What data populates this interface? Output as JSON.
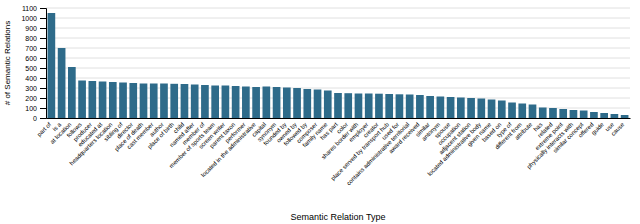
{
  "chart_data": {
    "type": "bar",
    "categories": [
      "part of",
      "is a",
      "at location",
      "follows",
      "producer",
      "educated at",
      "headquarters location",
      "sibling of",
      "director",
      "place of death",
      "cast member",
      "author",
      "place of birth",
      "child",
      "named after",
      "member of",
      "member of sports team",
      "screen writer",
      "parent taxon",
      "performer",
      "located in the administrative",
      "capital",
      "synonym",
      "founded by",
      "owned by",
      "followed by",
      "composer",
      "family name",
      "has part",
      "color",
      "shares border with",
      "employer",
      "creator",
      "place served by transport hub",
      "used for",
      "contains administrative territorial",
      "award received",
      "similar",
      "antonym",
      "spouse",
      "occupation",
      "adjacent station",
      "located administrative body",
      "given name",
      "based on",
      "type of",
      "different from",
      "attribute",
      "has",
      "related",
      "extreme point",
      "physically interacts with",
      "similar concept",
      "offered",
      "guide",
      "use",
      "cause"
    ],
    "values": [
      1050,
      700,
      510,
      375,
      370,
      365,
      360,
      355,
      350,
      345,
      345,
      345,
      342,
      340,
      335,
      330,
      325,
      325,
      320,
      315,
      310,
      315,
      310,
      305,
      300,
      290,
      285,
      275,
      250,
      248,
      245,
      245,
      243,
      240,
      237,
      235,
      230,
      220,
      215,
      210,
      205,
      200,
      195,
      185,
      175,
      155,
      145,
      135,
      105,
      100,
      90,
      80,
      75,
      60,
      50,
      40,
      30
    ],
    "color": "#2e6b8a",
    "xlabel": "Semantic Relation Type",
    "ylabel": "# of Semantic Relations",
    "ylim": [
      0,
      1100
    ],
    "yticks": [
      0,
      100,
      200,
      300,
      400,
      500,
      600,
      700,
      800,
      900,
      1000,
      1100
    ],
    "grid": true
  }
}
